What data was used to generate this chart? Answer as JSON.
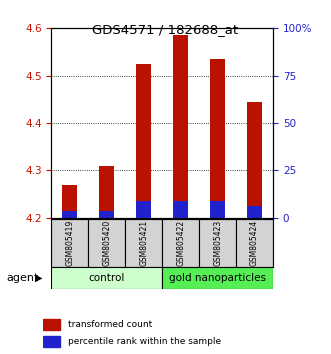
{
  "title": "GDS4571 / 182688_at",
  "samples": [
    "GSM805419",
    "GSM805420",
    "GSM805421",
    "GSM805422",
    "GSM805423",
    "GSM805424"
  ],
  "red_values": [
    4.27,
    4.31,
    4.525,
    4.585,
    4.535,
    4.445
  ],
  "blue_values": [
    4.215,
    4.215,
    4.235,
    4.235,
    4.235,
    4.225
  ],
  "y_min": 4.2,
  "y_max": 4.6,
  "y_ticks": [
    4.2,
    4.3,
    4.4,
    4.5,
    4.6
  ],
  "right_pct": [
    0,
    25,
    50,
    75,
    100
  ],
  "right_labels": [
    "0",
    "25",
    "50",
    "75",
    "100%"
  ],
  "bar_width": 0.4,
  "red_color": "#bb1100",
  "blue_color": "#2222cc",
  "control_color": "#ccffcc",
  "gold_color": "#55ee55",
  "agent_label": "agent",
  "legend_red": "transformed count",
  "legend_blue": "percentile rank within the sample",
  "left_tick_color": "#cc1100",
  "right_tick_color": "#2222cc"
}
